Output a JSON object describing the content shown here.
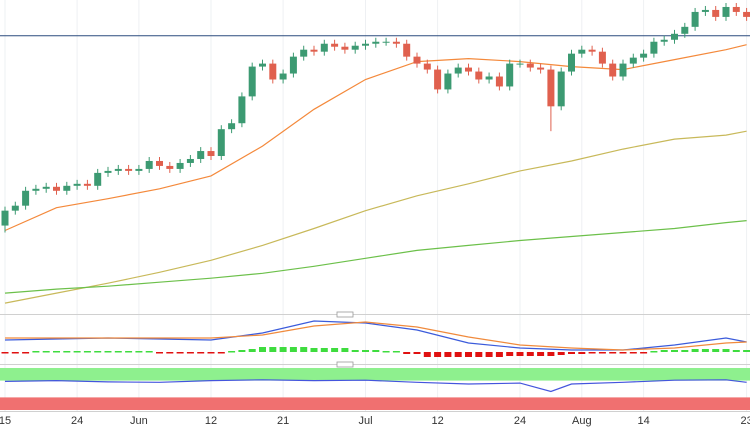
{
  "chart_data": [
    {
      "type": "candlestick",
      "categories": [
        "15",
        null,
        null,
        null,
        null,
        null,
        null,
        "24",
        null,
        null,
        null,
        null,
        null,
        "Jun",
        null,
        null,
        null,
        null,
        null,
        null,
        "12",
        null,
        null,
        null,
        null,
        null,
        null,
        "21",
        null,
        null,
        null,
        null,
        null,
        null,
        null,
        "Jul",
        null,
        null,
        null,
        null,
        null,
        null,
        "12",
        null,
        null,
        null,
        null,
        null,
        null,
        null,
        "24",
        null,
        null,
        null,
        null,
        null,
        "Aug",
        null,
        null,
        null,
        null,
        null,
        "14",
        null,
        null,
        null,
        null,
        null,
        null,
        null,
        null,
        null,
        "23"
      ],
      "open": [
        95,
        110,
        115,
        130,
        132,
        134,
        130,
        135,
        137,
        135,
        148,
        150,
        152,
        150,
        152,
        160,
        155,
        152,
        158,
        162,
        170,
        165,
        192,
        198,
        225,
        255,
        258,
        242,
        248,
        265,
        272,
        270,
        278,
        275,
        272,
        276,
        278,
        280,
        280,
        278,
        265,
        258,
        252,
        232,
        248,
        254,
        250,
        242,
        245,
        235,
        258,
        258,
        254,
        252,
        215,
        250,
        268,
        272,
        270,
        258,
        245,
        258,
        264,
        268,
        280,
        282,
        288,
        295,
        310,
        312,
        305,
        315,
        310
      ],
      "high": [
        114,
        119,
        134,
        136,
        138,
        138,
        139,
        141,
        141,
        152,
        154,
        156,
        156,
        156,
        164,
        164,
        159,
        162,
        166,
        174,
        174,
        196,
        202,
        229,
        259,
        262,
        262,
        252,
        269,
        276,
        276,
        282,
        282,
        279,
        280,
        282,
        284,
        284,
        284,
        282,
        269,
        262,
        256,
        252,
        258,
        258,
        254,
        249,
        249,
        262,
        262,
        262,
        258,
        256,
        254,
        272,
        276,
        276,
        274,
        262,
        262,
        268,
        272,
        284,
        286,
        292,
        299,
        314,
        316,
        316,
        319,
        319,
        314
      ],
      "low": [
        88,
        106,
        111,
        126,
        128,
        126,
        126,
        131,
        131,
        131,
        144,
        146,
        146,
        146,
        148,
        151,
        148,
        148,
        154,
        158,
        161,
        161,
        188,
        194,
        221,
        251,
        238,
        238,
        244,
        261,
        266,
        266,
        271,
        268,
        268,
        272,
        274,
        276,
        274,
        261,
        254,
        248,
        228,
        228,
        244,
        246,
        238,
        238,
        231,
        231,
        254,
        250,
        248,
        190,
        211,
        246,
        264,
        266,
        254,
        241,
        241,
        254,
        260,
        264,
        276,
        278,
        284,
        291,
        306,
        301,
        301,
        306,
        301
      ],
      "close": [
        110,
        115,
        130,
        132,
        134,
        130,
        135,
        137,
        135,
        148,
        150,
        152,
        150,
        152,
        160,
        155,
        152,
        158,
        162,
        170,
        165,
        192,
        198,
        225,
        255,
        258,
        242,
        248,
        265,
        272,
        270,
        278,
        275,
        272,
        276,
        278,
        280,
        280,
        278,
        265,
        258,
        252,
        232,
        248,
        254,
        250,
        242,
        245,
        235,
        258,
        258,
        254,
        252,
        215,
        250,
        268,
        272,
        270,
        258,
        245,
        258,
        264,
        268,
        280,
        282,
        288,
        295,
        310,
        312,
        305,
        315,
        310,
        305
      ],
      "up_color": "#3c9a72",
      "down_color": "#e0604e",
      "ylim": [
        8,
        320
      ],
      "hline": {
        "value": 286,
        "color": "#2b4c7e"
      },
      "series": [
        {
          "color": "#f4893b",
          "x": [
            0,
            5,
            10,
            15,
            20,
            25,
            30,
            35,
            40,
            45,
            50,
            55,
            60,
            65,
            70,
            72
          ],
          "values": [
            90,
            113,
            122,
            132,
            145,
            175,
            212,
            242,
            260,
            263,
            260,
            255,
            252,
            262,
            272,
            277
          ]
        },
        {
          "color": "#c8b95a",
          "x": [
            0,
            5,
            10,
            15,
            20,
            25,
            30,
            35,
            40,
            45,
            50,
            55,
            60,
            65,
            70,
            72
          ],
          "values": [
            17,
            27,
            37,
            48,
            60,
            75,
            92,
            110,
            125,
            137,
            150,
            160,
            172,
            182,
            186,
            190
          ]
        },
        {
          "color": "#6cc04a",
          "x": [
            0,
            5,
            10,
            15,
            20,
            25,
            30,
            35,
            40,
            45,
            50,
            55,
            60,
            65,
            70,
            72
          ],
          "values": [
            27,
            31,
            34,
            38,
            42,
            47,
            54,
            62,
            70,
            75,
            80,
            84,
            88,
            92,
            98,
            100
          ]
        }
      ]
    },
    {
      "type": "macd",
      "ylim": [
        -8,
        36
      ],
      "histogram": {
        "up_color": "#3fdc3f",
        "down_color": "#e01010",
        "values": [
          -1,
          -1,
          -1,
          1,
          1,
          1,
          1,
          1,
          1,
          1,
          1,
          1,
          1,
          1,
          1,
          -1,
          -1,
          -1,
          -1,
          -1,
          -1,
          -1,
          1,
          2,
          3,
          5,
          5,
          5,
          5,
          5,
          4,
          4,
          4,
          4,
          2,
          2,
          2,
          1,
          1,
          -2,
          -2,
          -5,
          -5,
          -5,
          -5,
          -5,
          -5,
          -5,
          -5,
          -4,
          -4,
          -4,
          -4,
          -4,
          -3,
          -2,
          -2,
          -1,
          -1,
          -1,
          -1,
          -1,
          -1,
          1,
          2,
          2,
          2,
          3,
          3,
          3,
          3,
          2,
          2
        ]
      },
      "series": [
        {
          "color": "#3b5bdb",
          "x": [
            0,
            5,
            10,
            15,
            20,
            25,
            30,
            35,
            40,
            45,
            50,
            55,
            60,
            65,
            70,
            72
          ],
          "values": [
            12,
            13,
            14,
            13,
            12,
            19,
            31,
            29,
            22,
            9,
            4,
            2,
            2,
            7,
            14,
            10
          ]
        },
        {
          "color": "#f08a3c",
          "x": [
            0,
            5,
            10,
            15,
            20,
            25,
            30,
            35,
            40,
            45,
            50,
            55,
            60,
            65,
            70,
            72
          ],
          "values": [
            14,
            14,
            14,
            14,
            14,
            17,
            26,
            30,
            25,
            15,
            7,
            4,
            2,
            4,
            9,
            10
          ]
        }
      ]
    },
    {
      "type": "rsi",
      "ylim": [
        0,
        100
      ],
      "bands": [
        {
          "from": 70,
          "to": 100,
          "color": "#8ef08e"
        },
        {
          "from": 0,
          "to": 30,
          "color": "#f07070"
        }
      ],
      "series": [
        {
          "color": "#4455dd",
          "x": [
            0,
            5,
            10,
            15,
            20,
            25,
            30,
            35,
            40,
            45,
            50,
            53,
            55,
            60,
            65,
            70,
            72
          ],
          "values": [
            68,
            70,
            67,
            66,
            70,
            72,
            70,
            71,
            66,
            62,
            64,
            44,
            62,
            66,
            71,
            72,
            66
          ]
        }
      ]
    }
  ]
}
